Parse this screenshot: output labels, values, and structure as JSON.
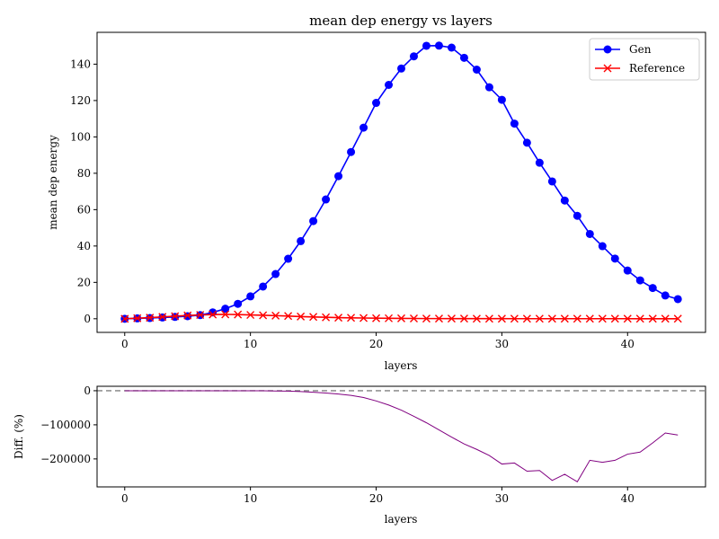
{
  "chart_data": [
    {
      "type": "line",
      "title": "mean dep energy vs layers",
      "xlabel": "layers",
      "ylabel": "mean dep energy",
      "xlim": [
        -2.2,
        46.2
      ],
      "ylim": [
        -7.5,
        157.5
      ],
      "xticks": [
        0,
        10,
        20,
        30,
        40
      ],
      "yticks": [
        0,
        20,
        40,
        60,
        80,
        100,
        120,
        140
      ],
      "legend_position": "top-right",
      "x": [
        0,
        1,
        2,
        3,
        4,
        5,
        6,
        7,
        8,
        9,
        10,
        11,
        12,
        13,
        14,
        15,
        16,
        17,
        18,
        19,
        20,
        21,
        22,
        23,
        24,
        25,
        26,
        27,
        28,
        29,
        30,
        31,
        32,
        33,
        34,
        35,
        36,
        37,
        38,
        39,
        40,
        41,
        42,
        43,
        44
      ],
      "series": [
        {
          "name": "Gen",
          "color": "#0000ff",
          "marker": "circle",
          "values": [
            0.0,
            0.2,
            0.4,
            0.7,
            1.0,
            1.4,
            2.0,
            3.5,
            5.5,
            8.2,
            12.3,
            17.7,
            24.6,
            33.0,
            42.7,
            53.7,
            65.6,
            78.4,
            91.7,
            105.1,
            118.7,
            128.6,
            137.6,
            144.3,
            150.1,
            150.2,
            149.1,
            143.5,
            137.0,
            127.3,
            120.4,
            107.3,
            96.8,
            85.8,
            75.5,
            65.0,
            56.6,
            46.6,
            39.9,
            33.1,
            26.5,
            21.1,
            16.9,
            12.8,
            10.8
          ]
        },
        {
          "name": "Reference",
          "color": "#ff0000",
          "marker": "x",
          "values": [
            0.0,
            0.3,
            0.6,
            1.0,
            1.4,
            1.8,
            2.1,
            2.3,
            2.4,
            2.3,
            2.1,
            1.9,
            1.7,
            1.5,
            1.2,
            1.0,
            0.8,
            0.6,
            0.5,
            0.4,
            0.3,
            0.25,
            0.2,
            0.15,
            0.1,
            0.1,
            0.08,
            0.07,
            0.06,
            0.05,
            0.05,
            0.04,
            0.04,
            0.04,
            0.03,
            0.03,
            0.03,
            0.03,
            0.03,
            0.03,
            0.03,
            0.02,
            0.02,
            0.02,
            0.02
          ]
        }
      ]
    },
    {
      "type": "line",
      "title": "",
      "xlabel": "layers",
      "ylabel": "Diff. (%)",
      "xlim": [
        -2.2,
        46.2
      ],
      "ylim": [
        -282000,
        13000
      ],
      "xticks": [
        0,
        10,
        20,
        30,
        40
      ],
      "yticks": [
        0,
        -100000,
        -200000
      ],
      "ytick_labels": [
        "0",
        "−100000",
        "−200000"
      ],
      "reference_line": {
        "y": 0,
        "color": "#808080",
        "style": "dashed"
      },
      "x": [
        0,
        1,
        2,
        3,
        4,
        5,
        6,
        7,
        8,
        9,
        10,
        11,
        12,
        13,
        14,
        15,
        16,
        17,
        18,
        19,
        20,
        21,
        22,
        23,
        24,
        25,
        26,
        27,
        28,
        29,
        30,
        31,
        32,
        33,
        34,
        35,
        36,
        37,
        38,
        39,
        40,
        41,
        42,
        43,
        44
      ],
      "series": [
        {
          "color": "#800080",
          "values": [
            0,
            0,
            0,
            0,
            0,
            0,
            0,
            0,
            0,
            0,
            -200,
            -300,
            -700,
            -1300,
            -2500,
            -4300,
            -6800,
            -9800,
            -13800,
            -20000,
            -30000,
            -42000,
            -57000,
            -75000,
            -94000,
            -115000,
            -136000,
            -156000,
            -172000,
            -190000,
            -215000,
            -212000,
            -236000,
            -234000,
            -263000,
            -245000,
            -267000,
            -204000,
            -210000,
            -204000,
            -186000,
            -180000,
            -153000,
            -124000,
            -130000
          ]
        }
      ]
    }
  ]
}
